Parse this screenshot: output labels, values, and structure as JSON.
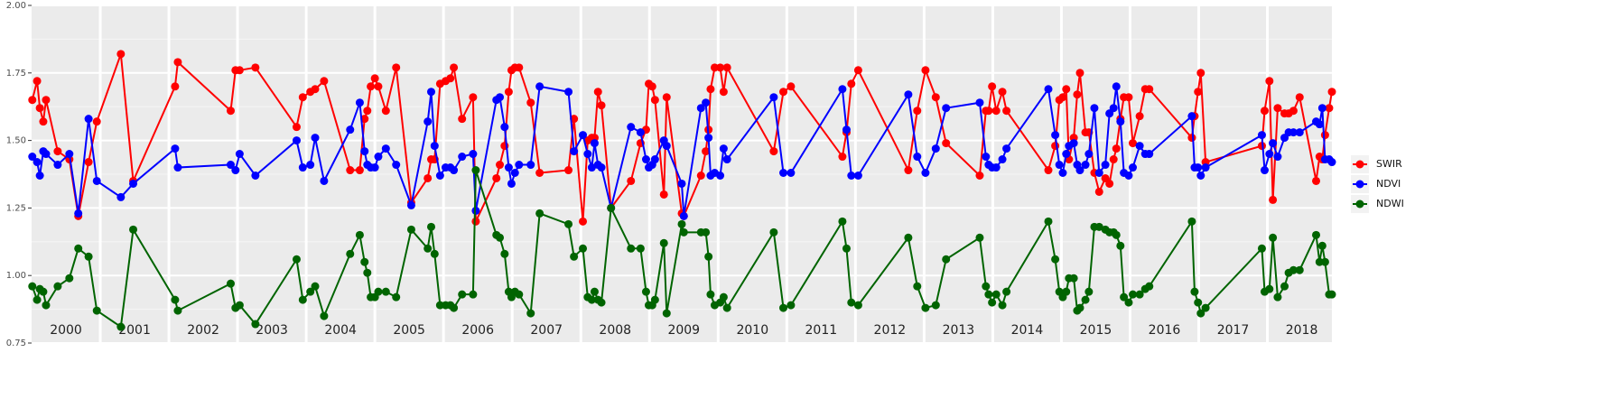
{
  "chart_data": {
    "type": "line",
    "x": [
      2000.01,
      2000.08,
      2000.12,
      2000.17,
      2000.21,
      2000.38,
      2000.55,
      2000.68,
      2000.83,
      2000.95,
      2001.3,
      2001.48,
      2002.09,
      2002.13,
      2002.9,
      2002.97,
      2003.03,
      2003.26,
      2003.86,
      2003.95,
      2004.06,
      2004.13,
      2004.26,
      2004.64,
      2004.78,
      2004.85,
      2004.89,
      2004.94,
      2005.0,
      2005.05,
      2005.16,
      2005.31,
      2005.53,
      2005.77,
      2005.82,
      2005.87,
      2005.95,
      2006.03,
      2006.1,
      2006.15,
      2006.27,
      2006.43,
      2006.47,
      2006.77,
      2006.82,
      2006.89,
      2006.95,
      2006.99,
      2007.04,
      2007.1,
      2007.27,
      2007.4,
      2007.82,
      2007.9,
      2008.03,
      2008.1,
      2008.16,
      2008.2,
      2008.25,
      2008.3,
      2008.44,
      2008.73,
      2008.87,
      2008.95,
      2008.99,
      2009.04,
      2009.08,
      2009.21,
      2009.25,
      2009.47,
      2009.5,
      2009.75,
      2009.82,
      2009.86,
      2009.89,
      2009.95,
      2010.03,
      2010.08,
      2010.13,
      2010.81,
      2010.95,
      2011.06,
      2011.81,
      2011.87,
      2011.94,
      2012.04,
      2012.77,
      2012.9,
      2013.02,
      2013.17,
      2013.32,
      2013.81,
      2013.9,
      2013.94,
      2013.99,
      2014.05,
      2014.14,
      2014.2,
      2014.81,
      2014.91,
      2014.97,
      2015.02,
      2015.07,
      2015.11,
      2015.18,
      2015.23,
      2015.27,
      2015.35,
      2015.4,
      2015.48,
      2015.55,
      2015.64,
      2015.7,
      2015.76,
      2015.8,
      2015.86,
      2015.91,
      2015.98,
      2016.04,
      2016.14,
      2016.22,
      2016.28,
      2016.9,
      2016.94,
      2016.99,
      2017.03,
      2017.1,
      2017.92,
      2017.96,
      2018.03,
      2018.08,
      2018.15,
      2018.25,
      2018.31,
      2018.38,
      2018.47,
      2018.71,
      2018.76,
      2018.8,
      2018.84,
      2018.9,
      2018.94
    ],
    "series": [
      {
        "name": "SWIR",
        "color": "#ff0000",
        "values": [
          1.65,
          1.72,
          1.62,
          1.57,
          1.65,
          1.46,
          1.43,
          1.22,
          1.42,
          1.57,
          1.82,
          1.35,
          1.7,
          1.79,
          1.61,
          1.76,
          1.76,
          1.77,
          1.55,
          1.66,
          1.68,
          1.69,
          1.72,
          1.39,
          1.39,
          1.58,
          1.61,
          1.7,
          1.73,
          1.7,
          1.61,
          1.77,
          1.27,
          1.36,
          1.43,
          1.43,
          1.71,
          1.72,
          1.73,
          1.77,
          1.58,
          1.66,
          1.2,
          1.36,
          1.41,
          1.48,
          1.68,
          1.76,
          1.77,
          1.77,
          1.64,
          1.38,
          1.39,
          1.58,
          1.2,
          1.5,
          1.51,
          1.51,
          1.68,
          1.63,
          1.25,
          1.35,
          1.49,
          1.54,
          1.71,
          1.7,
          1.65,
          1.3,
          1.66,
          1.23,
          1.22,
          1.37,
          1.46,
          1.54,
          1.69,
          1.77,
          1.77,
          1.68,
          1.77,
          1.46,
          1.68,
          1.7,
          1.44,
          1.53,
          1.71,
          1.76,
          1.39,
          1.61,
          1.76,
          1.66,
          1.49,
          1.37,
          1.61,
          1.61,
          1.7,
          1.61,
          1.68,
          1.61,
          1.39,
          1.48,
          1.65,
          1.66,
          1.69,
          1.43,
          1.51,
          1.67,
          1.75,
          1.53,
          1.53,
          1.38,
          1.31,
          1.36,
          1.34,
          1.43,
          1.47,
          1.58,
          1.66,
          1.66,
          1.49,
          1.59,
          1.69,
          1.69,
          1.51,
          1.59,
          1.68,
          1.75,
          1.42,
          1.48,
          1.61,
          1.72,
          1.28,
          1.62,
          1.6,
          1.6,
          1.61,
          1.66,
          1.35,
          1.44,
          1.43,
          1.52,
          1.62,
          1.68
        ]
      },
      {
        "name": "NDVI",
        "color": "#0000ff",
        "values": [
          1.44,
          1.42,
          1.37,
          1.46,
          1.45,
          1.41,
          1.45,
          1.23,
          1.58,
          1.35,
          1.29,
          1.34,
          1.47,
          1.4,
          1.41,
          1.39,
          1.45,
          1.37,
          1.5,
          1.4,
          1.41,
          1.51,
          1.35,
          1.54,
          1.64,
          1.46,
          1.41,
          1.4,
          1.4,
          1.44,
          1.47,
          1.41,
          1.26,
          1.57,
          1.68,
          1.48,
          1.37,
          1.4,
          1.4,
          1.39,
          1.44,
          1.45,
          1.24,
          1.65,
          1.66,
          1.55,
          1.4,
          1.34,
          1.38,
          1.41,
          1.41,
          1.7,
          1.68,
          1.46,
          1.52,
          1.45,
          1.4,
          1.49,
          1.41,
          1.4,
          1.25,
          1.55,
          1.53,
          1.43,
          1.4,
          1.41,
          1.43,
          1.5,
          1.48,
          1.34,
          1.22,
          1.62,
          1.64,
          1.51,
          1.37,
          1.38,
          1.37,
          1.47,
          1.43,
          1.66,
          1.38,
          1.38,
          1.69,
          1.54,
          1.37,
          1.37,
          1.67,
          1.44,
          1.38,
          1.47,
          1.62,
          1.64,
          1.44,
          1.41,
          1.4,
          1.4,
          1.43,
          1.47,
          1.69,
          1.52,
          1.41,
          1.38,
          1.45,
          1.48,
          1.49,
          1.41,
          1.39,
          1.41,
          1.45,
          1.62,
          1.38,
          1.41,
          1.6,
          1.62,
          1.7,
          1.57,
          1.38,
          1.37,
          1.4,
          1.48,
          1.45,
          1.45,
          1.59,
          1.4,
          1.4,
          1.37,
          1.4,
          1.52,
          1.39,
          1.45,
          1.49,
          1.44,
          1.51,
          1.53,
          1.53,
          1.53,
          1.57,
          1.56,
          1.62,
          1.43,
          1.43,
          1.42
        ]
      },
      {
        "name": "NDWI",
        "color": "#006400",
        "values": [
          0.96,
          0.91,
          0.95,
          0.94,
          0.89,
          0.96,
          0.99,
          1.1,
          1.07,
          0.87,
          0.81,
          1.17,
          0.91,
          0.87,
          0.97,
          0.88,
          0.89,
          0.82,
          1.06,
          0.91,
          0.94,
          0.96,
          0.85,
          1.08,
          1.15,
          1.05,
          1.01,
          0.92,
          0.92,
          0.94,
          0.94,
          0.92,
          1.17,
          1.1,
          1.18,
          1.08,
          0.89,
          0.89,
          0.89,
          0.88,
          0.93,
          0.93,
          1.39,
          1.15,
          1.14,
          1.08,
          0.94,
          0.92,
          0.94,
          0.93,
          0.86,
          1.23,
          1.19,
          1.07,
          1.1,
          0.92,
          0.91,
          0.94,
          0.91,
          0.9,
          1.25,
          1.1,
          1.1,
          0.94,
          0.89,
          0.89,
          0.91,
          1.12,
          0.86,
          1.19,
          1.16,
          1.16,
          1.16,
          1.07,
          0.93,
          0.89,
          0.9,
          0.92,
          0.88,
          1.16,
          0.88,
          0.89,
          1.2,
          1.1,
          0.9,
          0.89,
          1.14,
          0.96,
          0.88,
          0.89,
          1.06,
          1.14,
          0.96,
          0.93,
          0.9,
          0.93,
          0.89,
          0.94,
          1.2,
          1.06,
          0.94,
          0.92,
          0.94,
          0.99,
          0.99,
          0.87,
          0.88,
          0.91,
          0.94,
          1.18,
          1.18,
          1.17,
          1.16,
          1.16,
          1.15,
          1.11,
          0.92,
          0.9,
          0.93,
          0.93,
          0.95,
          0.96,
          1.2,
          0.94,
          0.9,
          0.86,
          0.88,
          1.1,
          0.94,
          0.95,
          1.14,
          0.92,
          0.96,
          1.01,
          1.02,
          1.02,
          1.15,
          1.05,
          1.11,
          1.05,
          0.93,
          0.93
        ]
      }
    ],
    "xlim": [
      2000,
      2018.94
    ],
    "xticks": [
      {
        "value": 2000.5,
        "label": "2000"
      },
      {
        "value": 2001.5,
        "label": "2001"
      },
      {
        "value": 2002.5,
        "label": "2002"
      },
      {
        "value": 2003.5,
        "label": "2003"
      },
      {
        "value": 2004.5,
        "label": "2004"
      },
      {
        "value": 2005.5,
        "label": "2005"
      },
      {
        "value": 2006.5,
        "label": "2006"
      },
      {
        "value": 2007.5,
        "label": "2007"
      },
      {
        "value": 2008.5,
        "label": "2008"
      },
      {
        "value": 2009.5,
        "label": "2009"
      },
      {
        "value": 2010.5,
        "label": "2010"
      },
      {
        "value": 2011.5,
        "label": "2011"
      },
      {
        "value": 2012.5,
        "label": "2012"
      },
      {
        "value": 2013.5,
        "label": "2013"
      },
      {
        "value": 2014.5,
        "label": "2014"
      },
      {
        "value": 2015.5,
        "label": "2015"
      },
      {
        "value": 2016.5,
        "label": "2016"
      },
      {
        "value": 2017.5,
        "label": "2017"
      },
      {
        "value": 2018.5,
        "label": "2018"
      }
    ],
    "xgrid_lines": [
      2001,
      2002,
      2003,
      2004,
      2005,
      2006,
      2007,
      2008,
      2009,
      2010,
      2011,
      2012,
      2013,
      2014,
      2015,
      2016,
      2017,
      2018
    ],
    "ylim": [
      0.75,
      2.0
    ],
    "yticks": [
      0.75,
      {
        "value": 1.0,
        "label": "1.00"
      },
      1.25,
      {
        "value": 1.5,
        "label": "1.50"
      },
      1.75,
      {
        "value": 2.0,
        "label": "2.00"
      }
    ],
    "grid": true,
    "legend": "right"
  }
}
